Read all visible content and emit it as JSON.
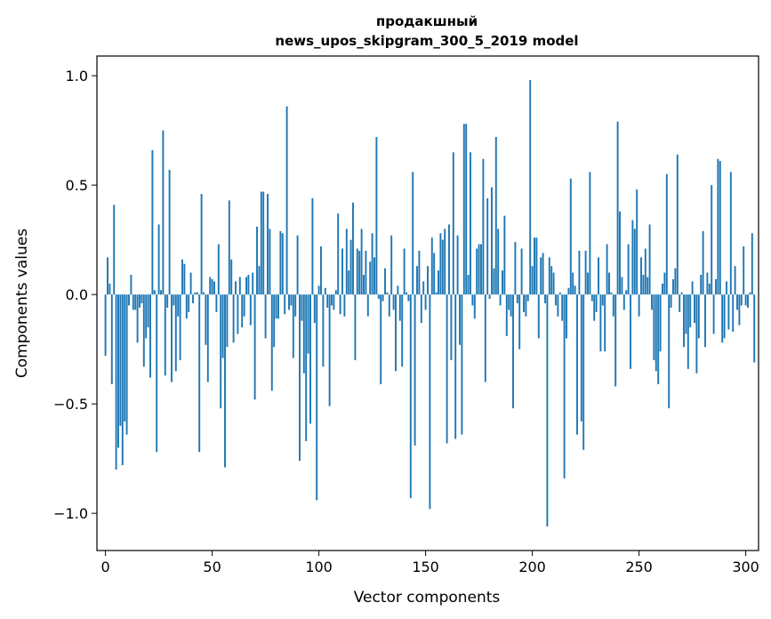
{
  "chart_data": {
    "type": "bar",
    "title": "продакшный\nnews_upos_skipgram_300_5_2019 model",
    "title_lines": [
      "продакшный",
      "news_upos_skipgram_300_5_2019 model"
    ],
    "xlabel": "Vector components",
    "ylabel": "Components values",
    "xlim": [
      -4,
      306
    ],
    "ylim": [
      -1.17,
      1.09
    ],
    "xticks": [
      0,
      50,
      100,
      150,
      200,
      250,
      300
    ],
    "xtick_labels": [
      "0",
      "50",
      "100",
      "150",
      "200",
      "250",
      "300"
    ],
    "yticks": [
      -1.0,
      -0.5,
      0.0,
      0.5,
      1.0
    ],
    "ytick_labels": [
      "−1.0",
      "−0.5",
      "0.0",
      "0.5",
      "1.0"
    ],
    "grid": false,
    "bar_color": "#1f77b4",
    "series": [
      {
        "values": [
          -0.28,
          0.17,
          0.05,
          -0.41,
          0.41,
          -0.8,
          -0.7,
          -0.6,
          -0.78,
          -0.58,
          -0.64,
          -0.05,
          0.09,
          -0.07,
          -0.07,
          -0.22,
          -0.06,
          -0.04,
          -0.33,
          -0.2,
          -0.15,
          -0.38,
          0.66,
          0.02,
          -0.72,
          0.32,
          0.02,
          0.75,
          -0.37,
          -0.06,
          0.57,
          -0.4,
          -0.05,
          -0.35,
          -0.1,
          -0.3,
          0.16,
          0.14,
          -0.11,
          -0.08,
          0.1,
          -0.04,
          0.01,
          0.01,
          -0.72,
          0.46,
          0.01,
          -0.23,
          -0.4,
          0.08,
          0.07,
          0.06,
          -0.08,
          0.23,
          -0.52,
          -0.29,
          -0.79,
          -0.24,
          0.43,
          0.16,
          -0.22,
          0.06,
          -0.18,
          0.08,
          -0.15,
          -0.1,
          0.08,
          0.09,
          -0.14,
          0.1,
          -0.48,
          0.31,
          0.13,
          0.47,
          0.47,
          -0.2,
          0.46,
          0.3,
          -0.44,
          -0.24,
          -0.11,
          -0.11,
          0.29,
          0.28,
          -0.09,
          0.86,
          -0.07,
          -0.05,
          -0.29,
          -0.1,
          0.27,
          -0.76,
          -0.12,
          -0.36,
          -0.67,
          -0.27,
          -0.59,
          0.44,
          -0.13,
          -0.94,
          0.04,
          0.22,
          -0.33,
          0.03,
          -0.06,
          -0.51,
          -0.05,
          -0.07,
          0.02,
          0.37,
          -0.09,
          0.21,
          -0.1,
          0.3,
          0.11,
          0.25,
          0.42,
          -0.3,
          0.21,
          0.2,
          0.3,
          0.09,
          0.2,
          -0.1,
          0.15,
          0.28,
          0.17,
          0.72,
          -0.02,
          -0.41,
          -0.03,
          0.12,
          0.01,
          -0.1,
          0.27,
          -0.07,
          -0.35,
          0.04,
          -0.12,
          -0.33,
          0.21,
          0.01,
          -0.03,
          -0.93,
          0.56,
          -0.69,
          0.13,
          0.2,
          -0.13,
          0.06,
          -0.07,
          0.13,
          -0.98,
          0.26,
          0.19,
          0.01,
          0.11,
          0.28,
          0.25,
          0.3,
          -0.68,
          0.32,
          -0.3,
          0.65,
          -0.66,
          0.27,
          -0.23,
          -0.64,
          0.78,
          0.78,
          0.09,
          0.65,
          -0.05,
          -0.11,
          0.21,
          0.23,
          0.23,
          0.62,
          -0.4,
          0.44,
          -0.02,
          0.49,
          0.12,
          0.72,
          0.3,
          -0.05,
          0.11,
          0.36,
          -0.19,
          -0.07,
          -0.1,
          -0.52,
          0.24,
          -0.04,
          -0.25,
          0.21,
          -0.08,
          -0.1,
          -0.03,
          0.98,
          0.13,
          0.26,
          0.26,
          -0.2,
          0.17,
          0.19,
          -0.04,
          -1.06,
          0.17,
          0.13,
          0.1,
          -0.05,
          -0.1,
          0.01,
          -0.12,
          -0.84,
          -0.2,
          0.03,
          0.53,
          0.1,
          0.04,
          -0.64,
          0.2,
          -0.58,
          -0.71,
          0.2,
          0.1,
          0.56,
          -0.03,
          -0.12,
          -0.08,
          0.17,
          -0.26,
          -0.05,
          -0.26,
          0.23,
          0.1,
          0.01,
          -0.1,
          -0.42,
          0.79,
          0.38,
          0.08,
          -0.07,
          0.02,
          0.23,
          -0.34,
          0.34,
          0.3,
          0.48,
          -0.1,
          0.17,
          0.09,
          0.21,
          0.08,
          0.32,
          -0.07,
          -0.3,
          -0.35,
          -0.41,
          -0.26,
          0.05,
          0.1,
          0.55,
          -0.52,
          -0.06,
          0.07,
          0.12,
          0.64,
          -0.08,
          0.01,
          -0.24,
          -0.18,
          -0.34,
          -0.15,
          0.06,
          -0.13,
          -0.36,
          -0.2,
          0.09,
          0.29,
          -0.24,
          0.1,
          0.05,
          0.5,
          -0.18,
          0.07,
          0.62,
          0.61,
          -0.22,
          -0.2,
          0.06,
          -0.16,
          0.56,
          -0.17,
          0.13,
          -0.07,
          -0.14,
          -0.05,
          0.22,
          -0.05,
          -0.06,
          0.01,
          0.28,
          -0.31
        ]
      }
    ]
  }
}
